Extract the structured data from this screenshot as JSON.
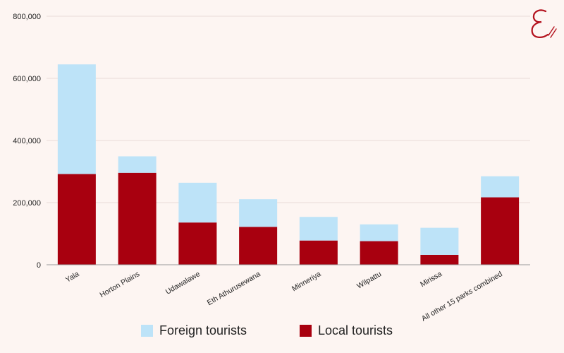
{
  "colors": {
    "foreign": "#bde3f8",
    "local": "#a8000f",
    "grid": "#e9dcd8",
    "axis": "#999999",
    "text": "#222222",
    "logo": "#b3101c"
  },
  "logo": {
    "icon": "logo-script-e-icon"
  },
  "chart_data": {
    "type": "bar",
    "stacked": true,
    "categories": [
      "Yala",
      "Horton Plains",
      "Udawalawe",
      "Eth Athurusewana",
      "Minneriya",
      "Wilpattu",
      "Mirissa",
      "All other 15 parks combined"
    ],
    "series": [
      {
        "name": "Local tourists",
        "values": [
          292000,
          296000,
          136000,
          122000,
          78000,
          76000,
          32000,
          217000
        ]
      },
      {
        "name": "Foreign tourists",
        "values": [
          353000,
          53000,
          128000,
          89000,
          76000,
          54000,
          87000,
          68000
        ]
      }
    ],
    "yticks": [
      "800,000",
      "600,000",
      "400,000",
      "200,000",
      "0"
    ],
    "ylim": [
      0,
      800000
    ],
    "grid": true,
    "legend_position": "bottom-center",
    "title": "",
    "xlabel": "",
    "ylabel": ""
  },
  "legend": {
    "foreign_label": "Foreign tourists",
    "local_label": "Local tourists"
  }
}
